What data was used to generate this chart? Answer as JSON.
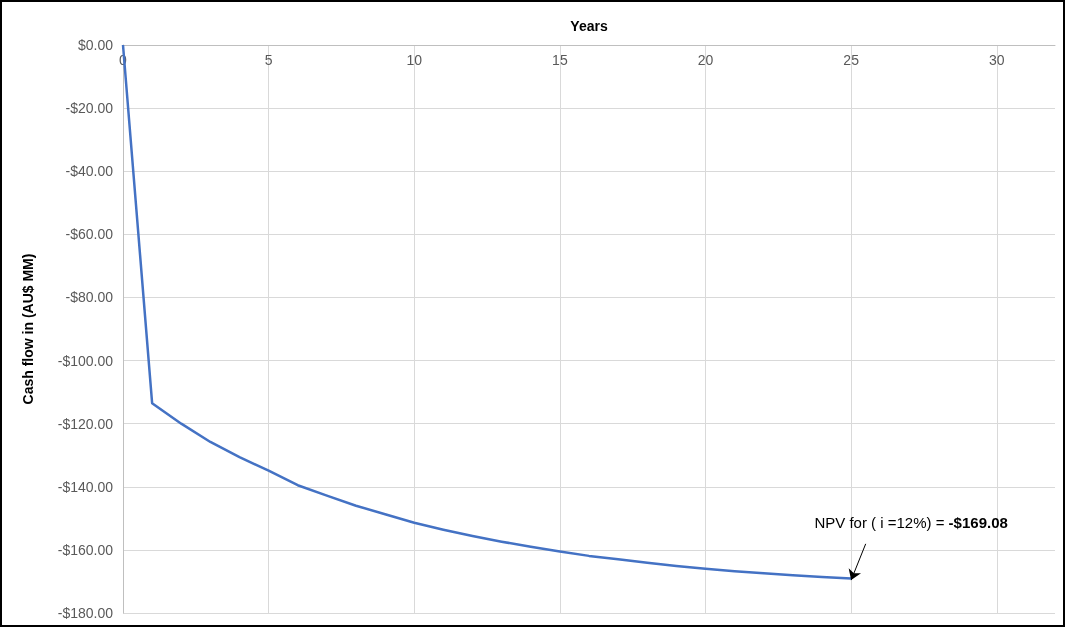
{
  "chart_data": {
    "type": "line",
    "xlabel": "Years",
    "ylabel": "Cash flow in (AU$ MM)",
    "x": [
      0,
      1,
      2,
      3,
      4,
      5,
      6,
      7,
      8,
      9,
      10,
      11,
      12,
      13,
      14,
      15,
      16,
      17,
      18,
      19,
      20,
      21,
      22,
      23,
      24,
      25
    ],
    "series": [
      {
        "color": "#4472c4",
        "values": [
          0,
          -113.5,
          -120,
          -125.8,
          -130.6,
          -134.9,
          -139.5,
          -142.8,
          -146,
          -148.7,
          -151.4,
          -153.6,
          -155.6,
          -157.4,
          -159,
          -160.5,
          -161.9,
          -163,
          -164.1,
          -165.1,
          -166,
          -166.8,
          -167.4,
          -168,
          -168.6,
          -169.08
        ]
      }
    ],
    "xlim": [
      0,
      32
    ],
    "xticks": [
      0,
      5,
      10,
      15,
      20,
      25,
      30
    ],
    "ylim": [
      -180,
      0
    ],
    "yticks": [
      {
        "value": 0,
        "label": "$0.00"
      },
      {
        "value": -20,
        "label": "-$20.00"
      },
      {
        "value": -40,
        "label": "-$40.00"
      },
      {
        "value": -60,
        "label": "-$60.00"
      },
      {
        "value": -80,
        "label": "-$80.00"
      },
      {
        "value": -100,
        "label": "-$100.00"
      },
      {
        "value": -120,
        "label": "-$120.00"
      },
      {
        "value": -140,
        "label": "-$140.00"
      },
      {
        "value": -160,
        "label": "-$160.00"
      },
      {
        "value": -180,
        "label": "-$180.00"
      }
    ],
    "annotations": [
      {
        "text": "NPV for ( i =12%) = -$169.08",
        "x": 25,
        "y": -169.08
      }
    ],
    "grid": true,
    "marker": "none",
    "line_style": "solid"
  }
}
